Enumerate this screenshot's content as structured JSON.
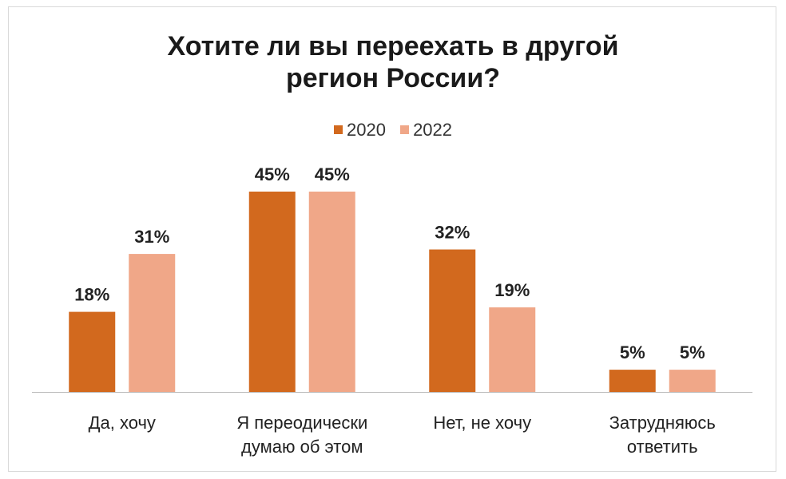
{
  "chart_data": {
    "type": "bar",
    "title_line1": "Хотите ли вы переехать в другой",
    "title_line2": "регион России?",
    "categories": [
      [
        "Да, хочу"
      ],
      [
        "Я переодически",
        "думаю об этом"
      ],
      [
        "Нет,  не хочу"
      ],
      [
        "Затрудняюсь",
        "ответить"
      ]
    ],
    "series": [
      {
        "name": "2020",
        "values": [
          18,
          45,
          32,
          5
        ],
        "labels": [
          "18%",
          "45%",
          "32%",
          "5%"
        ],
        "color": "#d2691e"
      },
      {
        "name": "2022",
        "values": [
          31,
          45,
          19,
          5
        ],
        "labels": [
          "31%",
          "45%",
          "19%",
          "5%"
        ],
        "color": "#f0a788"
      }
    ],
    "ylim": [
      0,
      45
    ],
    "grid": false,
    "legend_position": "top-center"
  }
}
